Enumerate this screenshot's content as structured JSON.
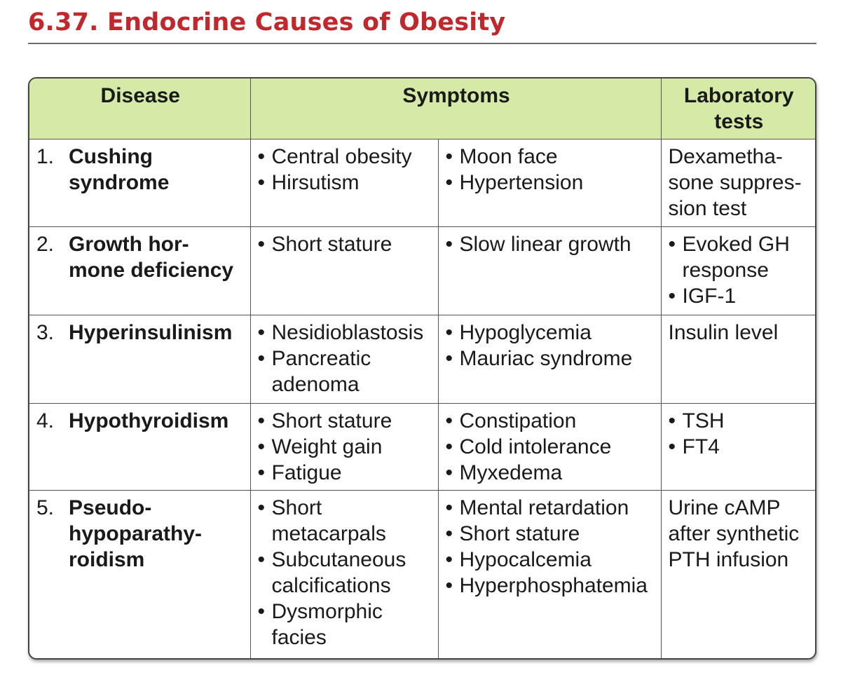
{
  "title": "6.37. Endocrine Causes of Obesity",
  "table": {
    "headers": {
      "disease": "Disease",
      "symptoms": "Symptoms",
      "laboratory_tests": "Laboratory tests"
    },
    "rows": [
      {
        "number": "1.",
        "disease": "Cushing syndrome",
        "symptoms_left": [
          "Central obesity",
          "Hirsutism"
        ],
        "symptoms_right": [
          "Moon face",
          "Hypertension"
        ],
        "lab_text": "Dexametha-sone suppres-sion test",
        "lab_list": []
      },
      {
        "number": "2.",
        "disease": "Growth hor-mone deficiency",
        "symptoms_left": [
          "Short stature"
        ],
        "symptoms_right": [
          "Slow linear growth"
        ],
        "lab_text": "",
        "lab_list": [
          "Evoked GH response",
          "IGF-1"
        ]
      },
      {
        "number": "3.",
        "disease": "Hyperinsulinism",
        "symptoms_left": [
          "Nesidioblastosis",
          "Pancreatic adenoma"
        ],
        "symptoms_right": [
          "Hypoglycemia",
          "Mauriac syndrome"
        ],
        "lab_text": "Insulin level",
        "lab_list": []
      },
      {
        "number": "4.",
        "disease": "Hypothyroidism",
        "symptoms_left": [
          "Short stature",
          "Weight gain",
          "Fatigue"
        ],
        "symptoms_right": [
          "Constipation",
          "Cold intolerance",
          "Myxedema"
        ],
        "lab_text": "",
        "lab_list": [
          "TSH",
          "FT4"
        ]
      },
      {
        "number": "5.",
        "disease": "Pseudo-hypoparathy-roidism",
        "symptoms_left": [
          "Short metacarpals",
          "Subcutaneous calcifications",
          "Dysmorphic facies"
        ],
        "symptoms_right": [
          "Mental retardation",
          "Short stature",
          "Hypocalcemia",
          "Hyperphosphatemia"
        ],
        "lab_text": "Urine cAMP after synthetic PTH infusion",
        "lab_list": []
      }
    ]
  }
}
